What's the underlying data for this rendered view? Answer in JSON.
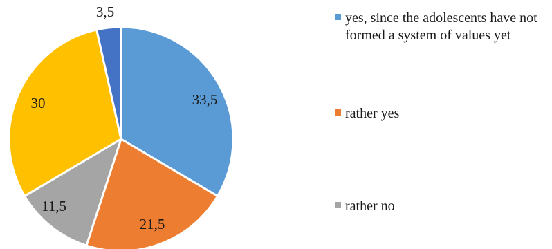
{
  "chart_data": {
    "type": "pie",
    "start_angle_deg": 0,
    "direction": "clockwise",
    "slices": [
      {
        "label": "yes, since the adolescents have not formed a system of values yet",
        "value": 33.5,
        "value_label": "33,5",
        "color": "#5b9bd5"
      },
      {
        "label": "rather yes",
        "value": 21.5,
        "value_label": "21,5",
        "color": "#ed7d31"
      },
      {
        "label": "rather no",
        "value": 11.5,
        "value_label": "11,5",
        "color": "#a5a5a5"
      },
      {
        "label": "",
        "value": 30,
        "value_label": "30",
        "color": "#ffc000"
      },
      {
        "label": "",
        "value": 3.5,
        "value_label": "3,5",
        "color": "#4472c4"
      }
    ],
    "legend_position": "right",
    "legend": [
      {
        "label": "yes, since the adolescents have not formed a system of values yet",
        "color": "#5b9bd5"
      },
      {
        "label": "rather yes",
        "color": "#ed7d31"
      },
      {
        "label": "rather no",
        "color": "#a5a5a5"
      }
    ]
  }
}
